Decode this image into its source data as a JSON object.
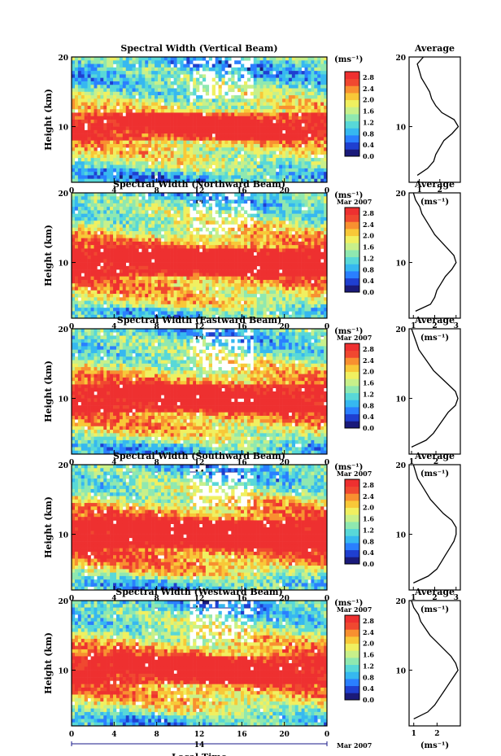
{
  "colors": {
    "scale": [
      "#1a1a7a",
      "#1f3fd0",
      "#2a7fff",
      "#36b8f0",
      "#58d8d8",
      "#8fe8b0",
      "#c8f08a",
      "#f0f060",
      "#f8c838",
      "#f89030",
      "#f04830",
      "#ee3030"
    ],
    "text": "#000000",
    "background": "#ffffff"
  },
  "chart_data": [
    {
      "type": "heatmap",
      "title": "Spectral Width (Vertical Beam)",
      "xlabel": "",
      "ylabel": "Height (km)",
      "xlim": [
        0,
        24
      ],
      "ylim": [
        2,
        20
      ],
      "x_ticks": [
        "0",
        "4",
        "8",
        "12",
        "16",
        "20",
        "0"
      ],
      "y_ticks": [
        "20",
        "10"
      ],
      "date_label": "14",
      "date_suffix": "Mar 2007",
      "colorbar": {
        "unit": "(ms⁻¹)",
        "ticks": [
          "2.8",
          "2.4",
          "2.0",
          "1.6",
          "1.2",
          "0.8",
          "0.4",
          "0.0"
        ],
        "range": [
          0,
          3
        ]
      },
      "profile": {
        "title": "Average",
        "xlabel": "(ms⁻¹)",
        "xlim": [
          0.5,
          3.0
        ],
        "x_ticks": [
          "1",
          "2"
        ],
        "y_ticks": [
          "20",
          "10"
        ],
        "heights": [
          3,
          4,
          5,
          6,
          7,
          8,
          9,
          10,
          11,
          12,
          13,
          14,
          15,
          16,
          17,
          18,
          19,
          20
        ],
        "values": [
          0.9,
          1.4,
          1.7,
          1.8,
          2.0,
          2.2,
          2.6,
          2.9,
          2.7,
          2.1,
          1.8,
          1.6,
          1.5,
          1.3,
          1.1,
          1.0,
          0.9,
          1.2
        ]
      }
    },
    {
      "type": "heatmap",
      "title": "Spectral Width (Northward Beam)",
      "xlabel": "",
      "ylabel": "Height (km)",
      "xlim": [
        0,
        24
      ],
      "ylim": [
        2,
        20
      ],
      "x_ticks": [
        "0",
        "4",
        "8",
        "12",
        "16",
        "20",
        "0"
      ],
      "y_ticks": [
        "20",
        "10"
      ],
      "date_label": "14",
      "date_suffix": "Mar 2007",
      "colorbar": {
        "unit": "(ms⁻¹)",
        "ticks": [
          "2.8",
          "2.4",
          "2.0",
          "1.6",
          "1.2",
          "0.8",
          "0.4",
          "0.0"
        ],
        "range": [
          0,
          3
        ]
      },
      "profile": {
        "title": "Average",
        "xlabel": "(ms⁻¹)",
        "xlim": [
          0.8,
          3.2
        ],
        "x_ticks": [
          "1",
          "2",
          "3"
        ],
        "y_ticks": [
          "20",
          "10"
        ],
        "heights": [
          3,
          4,
          5,
          6,
          7,
          8,
          9,
          10,
          11,
          12,
          13,
          14,
          15,
          16,
          17,
          18,
          19,
          20
        ],
        "values": [
          1.1,
          1.8,
          2.0,
          2.1,
          2.3,
          2.5,
          2.8,
          3.0,
          2.9,
          2.6,
          2.3,
          2.0,
          1.8,
          1.6,
          1.4,
          1.3,
          1.1,
          1.0
        ]
      }
    },
    {
      "type": "heatmap",
      "title": "Spectral Width (Eastward Beam)",
      "xlabel": "",
      "ylabel": "Height (km)",
      "xlim": [
        0,
        24
      ],
      "ylim": [
        2,
        20
      ],
      "x_ticks": [
        "0",
        "4",
        "8",
        "12",
        "16",
        "20",
        "0"
      ],
      "y_ticks": [
        "20",
        "10"
      ],
      "date_label": "14",
      "date_suffix": "Mar 2007",
      "colorbar": {
        "unit": "(ms⁻¹)",
        "ticks": [
          "2.8",
          "2.4",
          "2.0",
          "1.6",
          "1.2",
          "0.8",
          "0.4",
          "0.0"
        ],
        "range": [
          0,
          3
        ]
      },
      "profile": {
        "title": "Average",
        "xlabel": "(ms⁻¹)",
        "xlim": [
          0.9,
          3.0
        ],
        "x_ticks": [
          "1",
          "2"
        ],
        "y_ticks": [
          "20",
          "10"
        ],
        "heights": [
          3,
          4,
          5,
          6,
          7,
          8,
          9,
          10,
          11,
          12,
          13,
          14,
          15,
          16,
          17,
          18,
          19,
          20
        ],
        "values": [
          1.0,
          1.6,
          1.9,
          2.1,
          2.3,
          2.5,
          2.8,
          2.9,
          2.8,
          2.5,
          2.2,
          1.9,
          1.7,
          1.5,
          1.3,
          1.2,
          1.1,
          1.0
        ]
      }
    },
    {
      "type": "heatmap",
      "title": "Spectral Width (Southward Beam)",
      "xlabel": "",
      "ylabel": "Height (km)",
      "xlim": [
        0,
        24
      ],
      "ylim": [
        2,
        20
      ],
      "x_ticks": [
        "0",
        "4",
        "8",
        "12",
        "16",
        "20",
        "0"
      ],
      "y_ticks": [
        "20",
        "10"
      ],
      "date_label": "14",
      "date_suffix": "Mar 2007",
      "colorbar": {
        "unit": "(ms⁻¹)",
        "ticks": [
          "2.8",
          "2.4",
          "2.0",
          "1.6",
          "1.2",
          "0.8",
          "0.4",
          "0.0"
        ],
        "range": [
          0,
          3
        ]
      },
      "profile": {
        "title": "Average",
        "xlabel": "(ms⁻¹)",
        "xlim": [
          0.8,
          3.2
        ],
        "x_ticks": [
          "1",
          "2",
          "3"
        ],
        "y_ticks": [
          "20",
          "10"
        ],
        "heights": [
          3,
          4,
          5,
          6,
          7,
          8,
          9,
          10,
          11,
          12,
          13,
          14,
          15,
          16,
          17,
          18,
          19,
          20
        ],
        "values": [
          1.0,
          1.7,
          2.1,
          2.3,
          2.5,
          2.7,
          2.9,
          3.0,
          3.0,
          2.8,
          2.4,
          2.1,
          1.8,
          1.6,
          1.4,
          1.2,
          1.1,
          1.0
        ]
      }
    },
    {
      "type": "heatmap",
      "title": "Spectral Width (Westward Beam)",
      "xlabel": "Local Time",
      "ylabel": "Height (km)",
      "xlim": [
        0,
        24
      ],
      "ylim": [
        2,
        20
      ],
      "x_ticks": [
        "0",
        "4",
        "8",
        "12",
        "16",
        "20",
        "0"
      ],
      "y_ticks": [
        "20",
        "10"
      ],
      "date_label": "14",
      "date_suffix": "Mar 2007",
      "colorbar": {
        "unit": "(ms⁻¹)",
        "ticks": [
          "2.8",
          "2.4",
          "2.0",
          "1.6",
          "1.2",
          "0.8",
          "0.4",
          "0.0"
        ],
        "range": [
          0,
          3
        ]
      },
      "profile": {
        "title": "Average",
        "xlabel": "(ms⁻¹)",
        "xlim": [
          0.8,
          3.0
        ],
        "x_ticks": [
          "1",
          "2"
        ],
        "y_ticks": [
          "20",
          "10"
        ],
        "heights": [
          3,
          4,
          5,
          6,
          7,
          8,
          9,
          10,
          11,
          12,
          13,
          14,
          15,
          16,
          17,
          18,
          19,
          20
        ],
        "values": [
          1.0,
          1.6,
          1.9,
          2.1,
          2.3,
          2.5,
          2.7,
          2.9,
          2.8,
          2.6,
          2.3,
          2.0,
          1.7,
          1.5,
          1.3,
          1.2,
          1.0,
          0.9
        ]
      }
    }
  ]
}
